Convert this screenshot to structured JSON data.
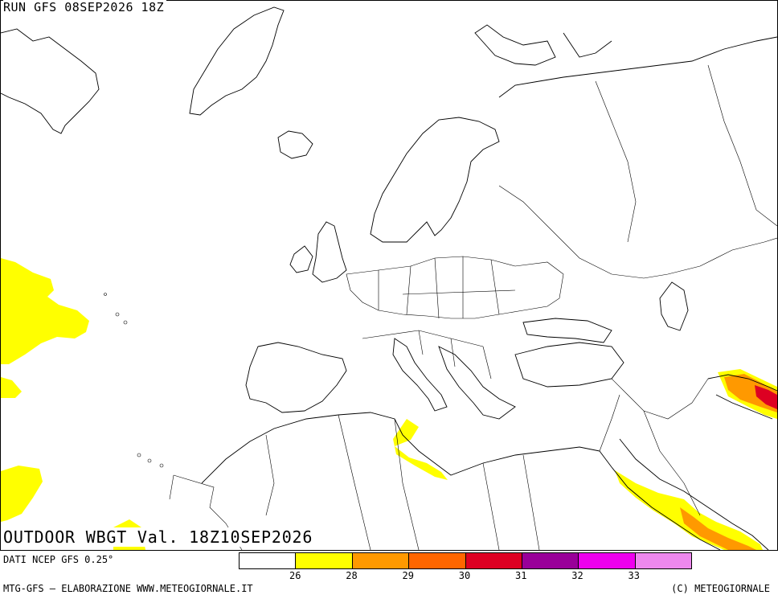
{
  "header": {
    "run_label": "RUN GFS 08SEP2026 18Z"
  },
  "map": {
    "title": "OUTDOOR WBGT Val. 18Z10SEP2026",
    "region": "Europe, North Africa, Middle East"
  },
  "legend": {
    "bins": [
      {
        "color": "#ffffff",
        "upper": "26"
      },
      {
        "color": "#ffff00",
        "upper": "28"
      },
      {
        "color": "#ff9900",
        "upper": "29"
      },
      {
        "color": "#ff6600",
        "upper": "30"
      },
      {
        "color": "#dd0022",
        "upper": "31"
      },
      {
        "color": "#990099",
        "upper": "32"
      },
      {
        "color": "#ee00ee",
        "upper": "33"
      },
      {
        "color": "#ee88ee",
        "upper": ""
      }
    ]
  },
  "footer": {
    "data_source": "DATI NCEP GFS 0.25°",
    "elaboration": "MTG-GFS — ELABORAZIONE WWW.METEOGIORNALE.IT",
    "copyright": "(C) METEOGIORNALE"
  }
}
